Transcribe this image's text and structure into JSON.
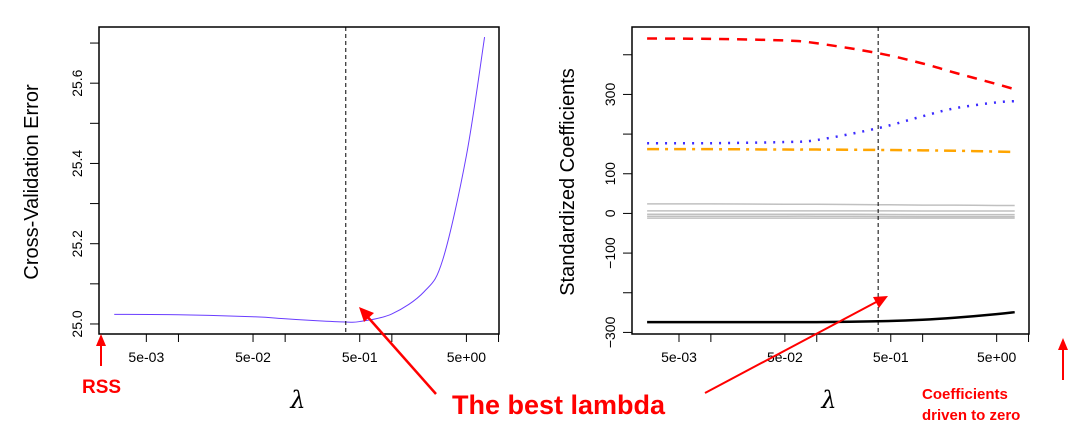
{
  "chart_data": [
    {
      "type": "line",
      "xlabel": "λ",
      "ylabel": "Cross-Validation Error",
      "x_scale": "log",
      "xlim": [
        0.0018,
        10.1
      ],
      "ylim": [
        24.975,
        25.74
      ],
      "x_ticks": [
        0.005,
        0.01,
        0.05,
        0.1,
        0.5,
        1,
        5,
        10
      ],
      "x_tick_labels": [
        "5e-03",
        "",
        "5e-02",
        "",
        "5e-01",
        "",
        "5e+00",
        ""
      ],
      "y_ticks": [
        25.0,
        25.1,
        25.2,
        25.3,
        25.4,
        25.5,
        25.6,
        25.7
      ],
      "y_tick_labels": [
        "25.0",
        "",
        "25.2",
        "",
        "25.4",
        "",
        "25.6",
        ""
      ],
      "grid": false,
      "vline": 0.37,
      "series": [
        {
          "color": "#6a3dff",
          "x": [
            0.0025,
            0.01,
            0.05,
            0.1,
            0.2,
            0.37,
            0.5,
            1,
            2,
            3,
            5,
            7.4
          ],
          "values": [
            25.024,
            25.023,
            25.018,
            25.013,
            25.008,
            25.005,
            25.006,
            25.025,
            25.08,
            25.16,
            25.42,
            25.715
          ]
        }
      ]
    },
    {
      "type": "line",
      "xlabel": "λ",
      "ylabel": "Standardized Coefficients",
      "x_scale": "log",
      "xlim": [
        0.0018,
        10.1
      ],
      "ylim": [
        -304,
        470
      ],
      "x_ticks": [
        0.005,
        0.01,
        0.05,
        0.1,
        0.5,
        1,
        5,
        10
      ],
      "x_tick_labels": [
        "5e-03",
        "",
        "5e-02",
        "",
        "5e-01",
        "",
        "5e+00",
        ""
      ],
      "y_ticks": [
        -300,
        -200,
        -100,
        0,
        100,
        200,
        300,
        400
      ],
      "y_tick_labels": [
        "-300",
        "",
        "-100",
        "0",
        "100",
        "",
        "300",
        ""
      ],
      "grid": false,
      "vline": 0.38,
      "x": [
        0.0025,
        0.01,
        0.05,
        0.1,
        0.38,
        1,
        2,
        5,
        7.4
      ],
      "series": [
        {
          "color": "#ff0000",
          "style": "dashed",
          "values": [
            441,
            440,
            436,
            429,
            404,
            378,
            355,
            326,
            313
          ]
        },
        {
          "color": "#3b2bff",
          "style": "dotted",
          "values": [
            177,
            177,
            180,
            185,
            215,
            245,
            265,
            280,
            283
          ]
        },
        {
          "color": "#ffa500",
          "style": "dashdot",
          "values": [
            162,
            162,
            161,
            161,
            160,
            159,
            158,
            156,
            155
          ]
        },
        {
          "color": "#c0c0c0",
          "style": "solid",
          "values": [
            24,
            24,
            23,
            23,
            22,
            21,
            21,
            20,
            20
          ]
        },
        {
          "color": "#c0c0c0",
          "style": "solid",
          "values": [
            6.5,
            6.5,
            6.5,
            6.5,
            6.3,
            6.2,
            6,
            6,
            6
          ]
        },
        {
          "color": "#c0c0c0",
          "style": "solid",
          "values": [
            -2,
            -2,
            -2,
            -2,
            -2.5,
            -3,
            -3,
            -3,
            -3
          ]
        },
        {
          "color": "#c0c0c0",
          "style": "solid",
          "values": [
            -7,
            -7,
            -7,
            -7,
            -7.5,
            -8,
            -8,
            -8,
            -8
          ]
        },
        {
          "color": "#c0c0c0",
          "style": "solid",
          "values": [
            -12,
            -12,
            -12,
            -12,
            -12,
            -12,
            -12,
            -12,
            -12
          ]
        },
        {
          "color": "#000000",
          "style": "solid",
          "values": [
            -274,
            -274,
            -274,
            -274,
            -272,
            -268,
            -263,
            -254,
            -249
          ]
        }
      ]
    }
  ],
  "annotations": {
    "rss": "RSS",
    "best_lambda": "The best lambda",
    "driven_line1": "Coefficients",
    "driven_line2": "driven to zero",
    "color": "#ff0000"
  }
}
